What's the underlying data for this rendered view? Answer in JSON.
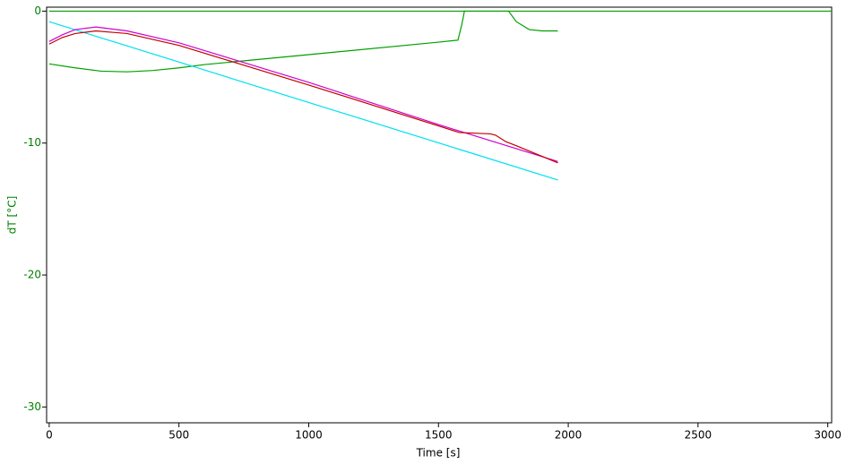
{
  "chart_data": {
    "type": "line",
    "x_label": "Time [s]",
    "y_label": "dT [°C]",
    "xlim": [
      -10,
      3015
    ],
    "ylim": [
      -31.2,
      0.3
    ],
    "xticks": [
      0,
      500,
      1000,
      1500,
      2000,
      2500,
      3000
    ],
    "yticks": [
      0,
      -10,
      -20,
      -30
    ],
    "series": [
      {
        "color": "#00a000",
        "x": [
          0,
          3015
        ],
        "values": [
          0,
          0
        ]
      },
      {
        "color": "#00a000",
        "x": [
          0,
          100,
          200,
          300,
          400,
          500,
          600,
          1000,
          1500,
          1575,
          1590,
          1600,
          1770,
          1800,
          1850,
          1900,
          1960
        ],
        "values": [
          -4,
          -4.3,
          -4.55,
          -4.6,
          -4.5,
          -4.3,
          -4.05,
          -3.3,
          -2.35,
          -2.2,
          -1,
          0,
          0,
          -0.8,
          -1.4,
          -1.5,
          -1.5
        ]
      },
      {
        "color": "#00e0f0",
        "x": [
          0,
          1960
        ],
        "values": [
          -0.8,
          -12.8
        ]
      },
      {
        "color": "#d000d0",
        "x": [
          0,
          50,
          100,
          180,
          300,
          500,
          1000,
          1500,
          1960
        ],
        "values": [
          -2.3,
          -1.8,
          -1.4,
          -1.2,
          -1.5,
          -2.4,
          -5.4,
          -8.6,
          -11.4
        ]
      },
      {
        "color": "#c00000",
        "x": [
          0,
          50,
          100,
          180,
          300,
          500,
          1000,
          1500,
          1580,
          1700,
          1720,
          1760,
          1800,
          1960
        ],
        "values": [
          -2.5,
          -2,
          -1.7,
          -1.5,
          -1.7,
          -2.6,
          -5.6,
          -8.7,
          -9.2,
          -9.3,
          -9.4,
          -9.9,
          -10.2,
          -11.5
        ]
      }
    ]
  }
}
